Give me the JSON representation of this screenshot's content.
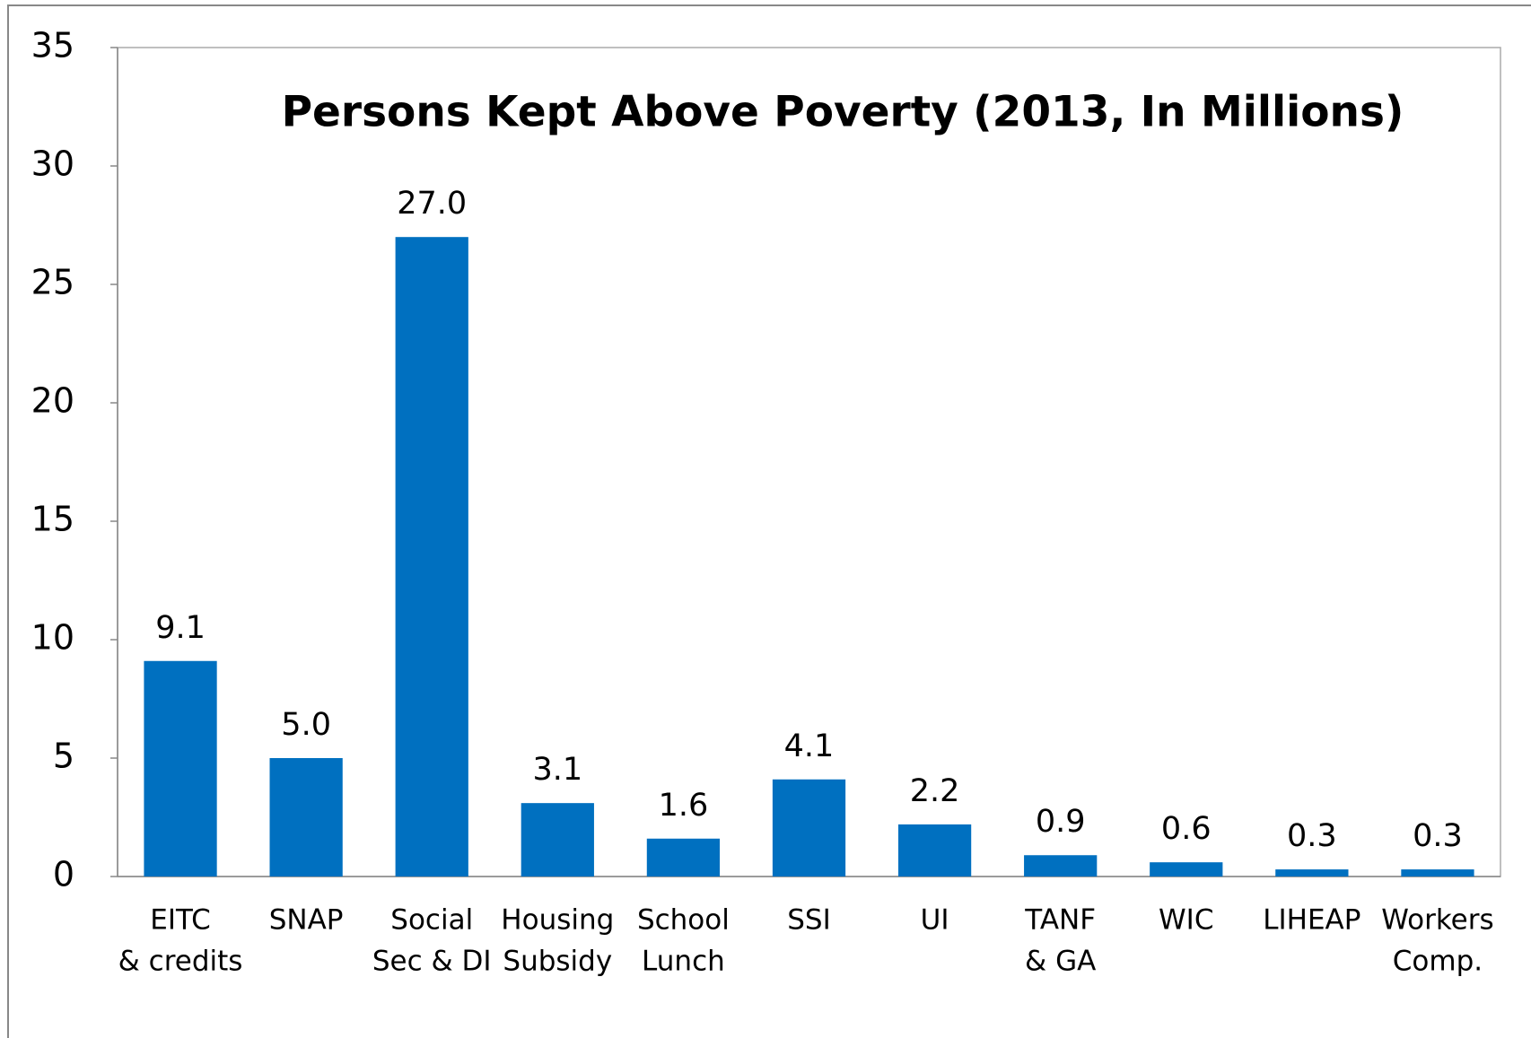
{
  "chart_data": {
    "type": "bar",
    "title": "Persons Kept Above Poverty (2013, In Millions)",
    "categories": [
      [
        "EITC",
        "& credits"
      ],
      [
        "SNAP"
      ],
      [
        "Social",
        "Sec & DI"
      ],
      [
        "Housing",
        "Subsidy"
      ],
      [
        "School",
        "Lunch"
      ],
      [
        "SSI"
      ],
      [
        "UI"
      ],
      [
        "TANF",
        "& GA"
      ],
      [
        "WIC"
      ],
      [
        "LIHEAP"
      ],
      [
        "Workers",
        "Comp."
      ]
    ],
    "values": [
      9.1,
      5.0,
      27.0,
      3.1,
      1.6,
      4.1,
      2.2,
      0.9,
      0.6,
      0.3,
      0.3
    ],
    "value_labels": [
      "9.1",
      "5.0",
      "27.0",
      "3.1",
      "1.6",
      "4.1",
      "2.2",
      "0.9",
      "0.6",
      "0.3",
      "0.3"
    ],
    "color": "#0070c0",
    "ylim": [
      0,
      35
    ],
    "yticks": [
      0,
      5,
      10,
      15,
      20,
      25,
      30,
      35
    ],
    "grid": false
  }
}
